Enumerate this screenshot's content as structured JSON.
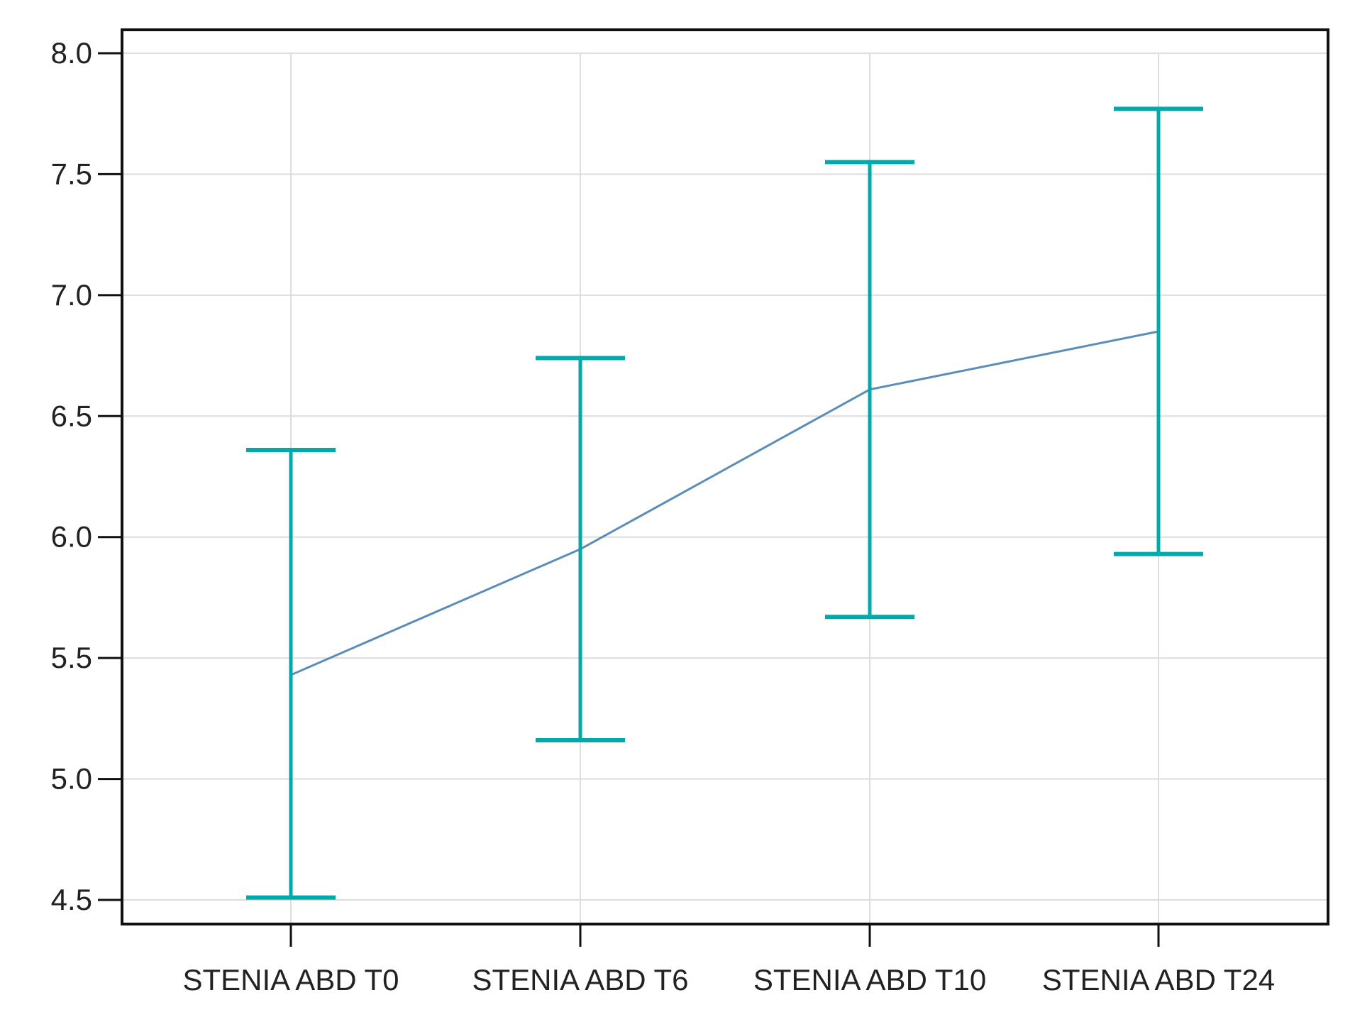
{
  "chart_data": {
    "type": "line",
    "title": "",
    "xlabel": "",
    "ylabel": "",
    "categories": [
      "STENIA ABD T0",
      "STENIA ABD T6",
      "STENIA ABD T10",
      "STENIA ABD T24"
    ],
    "yticks": [
      "4.5",
      "5.0",
      "5.5",
      "6.0",
      "6.5",
      "7.0",
      "7.5",
      "8.0"
    ],
    "ylim": [
      4.5,
      8.0
    ],
    "grid": true,
    "series": [
      {
        "values": [
          5.43,
          5.95,
          6.61,
          6.85
        ],
        "error_lower": [
          4.51,
          5.16,
          5.67,
          5.93
        ],
        "error_upper": [
          6.36,
          6.74,
          7.55,
          7.77
        ],
        "line_color": "#5b8db8",
        "error_color": "#00aaaa"
      }
    ]
  }
}
